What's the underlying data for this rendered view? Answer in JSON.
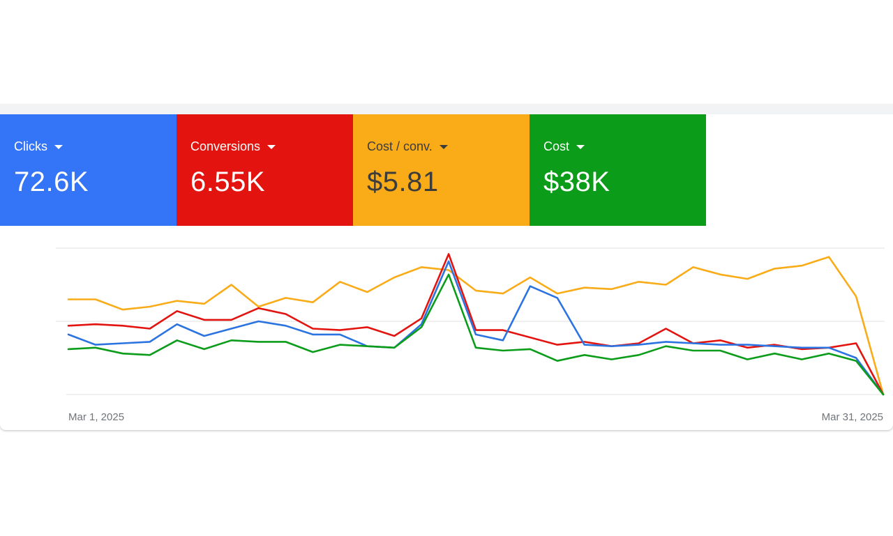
{
  "tiles": [
    {
      "label": "Clicks",
      "value": "72.6K",
      "bg": "#3474f6",
      "fg": "#ffffff"
    },
    {
      "label": "Conversions",
      "value": "6.55K",
      "bg": "#e3140f",
      "fg": "#ffffff"
    },
    {
      "label": "Cost / conv.",
      "value": "$5.81",
      "bg": "#f9ab18",
      "fg": "#3c3c3c"
    },
    {
      "label": "Cost",
      "value": "$38K",
      "bg": "#0b9c1a",
      "fg": "#ffffff"
    }
  ],
  "chart_data": {
    "type": "line",
    "x_start_label": "Mar 1, 2025",
    "x_end_label": "Mar 31, 2025",
    "grid": true,
    "ylim": [
      0,
      100
    ],
    "series": [
      {
        "color": "#f9ab18",
        "values": [
          65,
          65,
          58,
          60,
          64,
          62,
          75,
          60,
          66,
          63,
          77,
          70,
          80,
          87,
          85,
          71,
          69,
          80,
          69,
          73,
          72,
          77,
          75,
          87,
          82,
          79,
          86,
          88,
          94,
          67,
          0
        ]
      },
      {
        "color": "#e3140f",
        "values": [
          47,
          48,
          47,
          45,
          57,
          51,
          51,
          59,
          55,
          45,
          44,
          46,
          40,
          52,
          96,
          44,
          44,
          39,
          34,
          36,
          33,
          35,
          45,
          35,
          37,
          32,
          34,
          31,
          32,
          35,
          0
        ]
      },
      {
        "color": "#2b73e0",
        "values": [
          41,
          34,
          35,
          36,
          48,
          40,
          45,
          50,
          47,
          41,
          41,
          33,
          32,
          48,
          91,
          41,
          37,
          74,
          66,
          34,
          33,
          34,
          36,
          35,
          34,
          34,
          33,
          32,
          32,
          25,
          0
        ]
      },
      {
        "color": "#0b9c1a",
        "values": [
          31,
          32,
          28,
          27,
          37,
          31,
          37,
          36,
          36,
          29,
          34,
          33,
          32,
          46,
          82,
          32,
          30,
          31,
          23,
          27,
          24,
          27,
          33,
          30,
          30,
          24,
          28,
          24,
          28,
          23,
          0
        ]
      }
    ]
  }
}
